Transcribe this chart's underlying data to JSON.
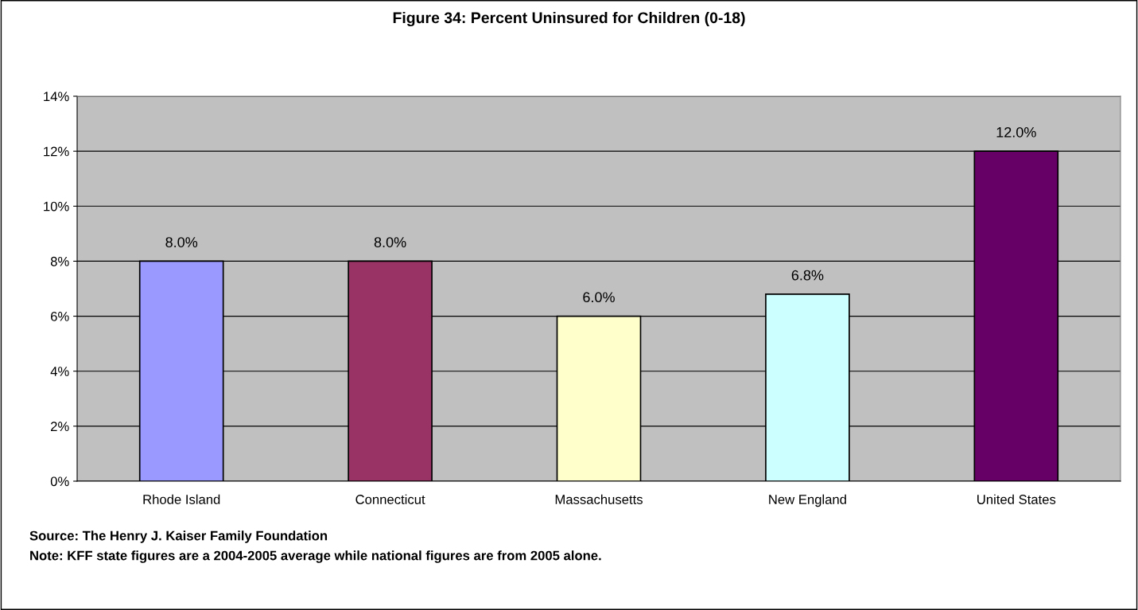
{
  "chart_data": {
    "type": "bar",
    "title": "Figure 34: Percent Uninsured for Children (0-18)",
    "categories": [
      "Rhode Island",
      "Connecticut",
      "Massachusetts",
      "New England",
      "United States"
    ],
    "values": [
      8.0,
      8.0,
      6.0,
      6.8,
      12.0
    ],
    "colors": [
      "#9999ff",
      "#993366",
      "#ffffcc",
      "#ccffff",
      "#660066"
    ],
    "value_labels": [
      "8.0%",
      "8.0%",
      "6.0%",
      "6.8%",
      "12.0%"
    ],
    "ylim": [
      0,
      14
    ],
    "yticks": [
      {
        "value": 0,
        "label": "0%"
      },
      {
        "value": 2,
        "label": "2%"
      },
      {
        "value": 4,
        "label": "4%"
      },
      {
        "value": 6,
        "label": "6%"
      },
      {
        "value": 8,
        "label": "8%"
      },
      {
        "value": 10,
        "label": "10%"
      },
      {
        "value": 12,
        "label": "12%"
      },
      {
        "value": 14,
        "label": "14%"
      }
    ],
    "grid": "y",
    "annotations": [
      "Source: The Henry J. Kaiser Family Foundation",
      "Note: KFF state figures are a 2004-2005 average while national figures are from 2005 alone."
    ]
  }
}
